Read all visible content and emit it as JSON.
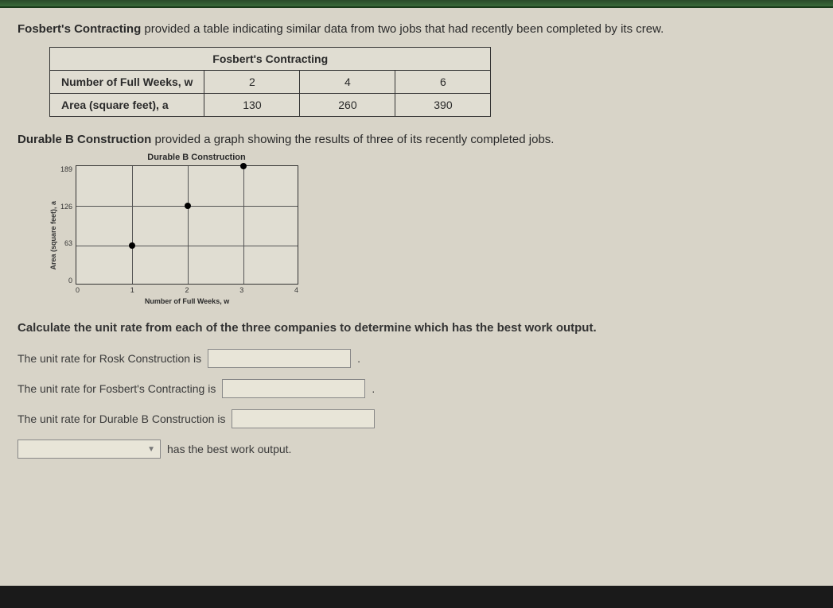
{
  "intro1_prefix_bold": "Fosbert's Contracting",
  "intro1_rest": " provided a table indicating similar data from two jobs that had recently been completed by its crew.",
  "table": {
    "title": "Fosbert's Contracting",
    "row1_label": "Number of Full Weeks, w",
    "row1_vals": [
      "2",
      "4",
      "6"
    ],
    "row2_label": "Area (square feet), a",
    "row2_vals": [
      "130",
      "260",
      "390"
    ]
  },
  "intro2_prefix_bold": "Durable B Construction",
  "intro2_rest": " provided a graph showing the results of three of its recently completed jobs.",
  "chart": {
    "title": "Durable B Construction",
    "ylabel": "Area (square feet), a",
    "xlabel": "Number of Full Weeks, w",
    "ylim": [
      0,
      189
    ],
    "xlim": [
      0,
      4
    ],
    "yticks": [
      "189",
      "126",
      "63",
      "0"
    ],
    "xticks": [
      "0",
      "1",
      "2",
      "3",
      "4"
    ],
    "grid_color": "#555555",
    "point_color": "#000000",
    "points": [
      {
        "x": 1,
        "y": 63
      },
      {
        "x": 2,
        "y": 126
      },
      {
        "x": 3,
        "y": 189
      }
    ]
  },
  "instruction": "Calculate the unit rate from each of the three companies to determine which has the best work output.",
  "q1_label": "The unit rate for Rosk Construction is",
  "q2_label": "The unit rate for Fosbert's Contracting is",
  "q3_label": "The unit rate for Durable B Construction is",
  "q4_suffix": "has the best work output.",
  "period": "."
}
